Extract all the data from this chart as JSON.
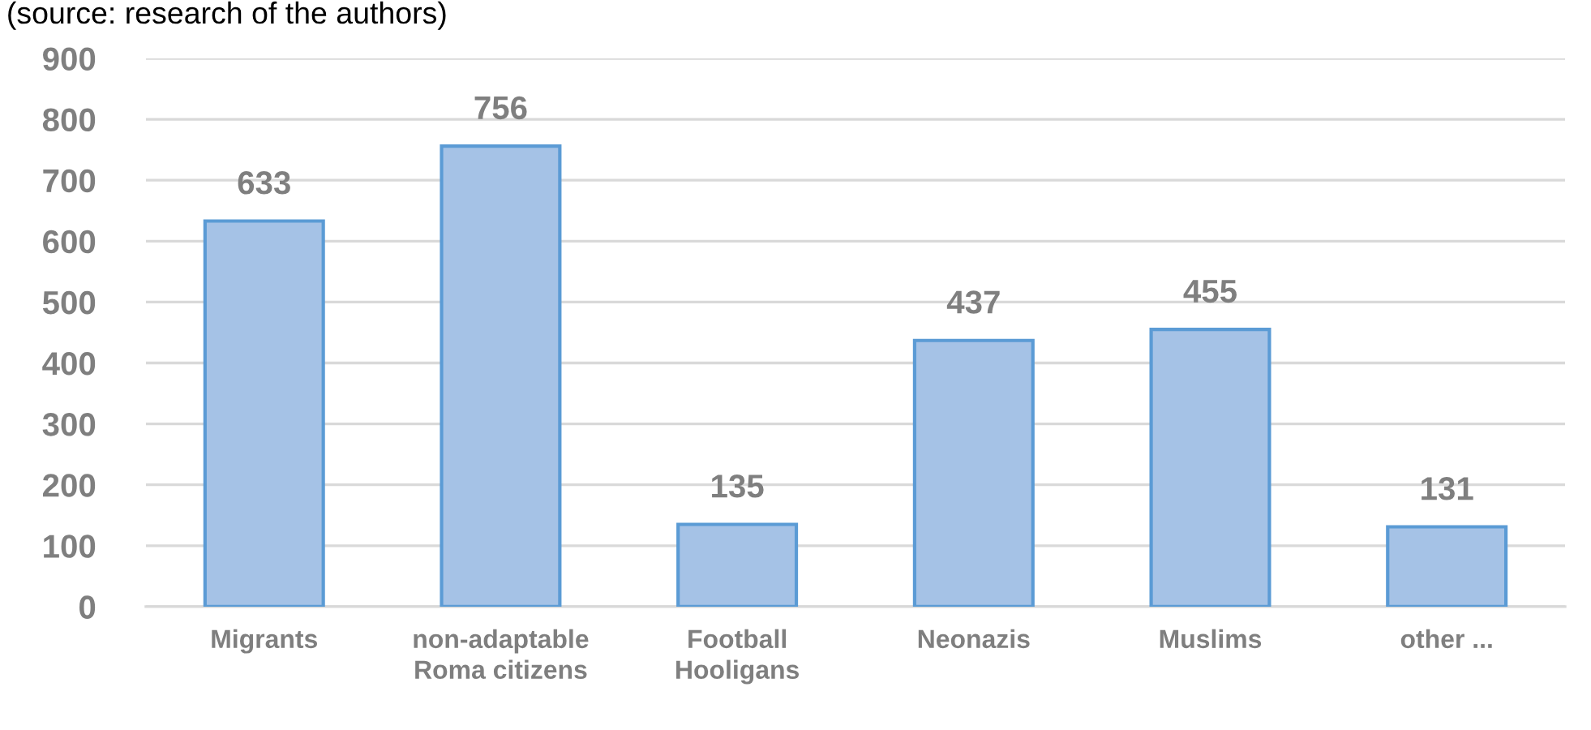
{
  "chart_data": {
    "type": "bar",
    "annotations": [
      "(source: research of the authors)"
    ],
    "categories": [
      "Migrants",
      "non-adaptable\nRoma citizens",
      "Football\nHooligans",
      "Neonazis",
      "Muslims",
      "other ..."
    ],
    "values": [
      633,
      756,
      135,
      437,
      455,
      131
    ],
    "color": "#a5c2e6",
    "ylim": [
      0,
      900
    ],
    "yticks": [
      0,
      100,
      200,
      300,
      400,
      500,
      600,
      700,
      800,
      900
    ],
    "grid": "y",
    "data_labels": true
  }
}
